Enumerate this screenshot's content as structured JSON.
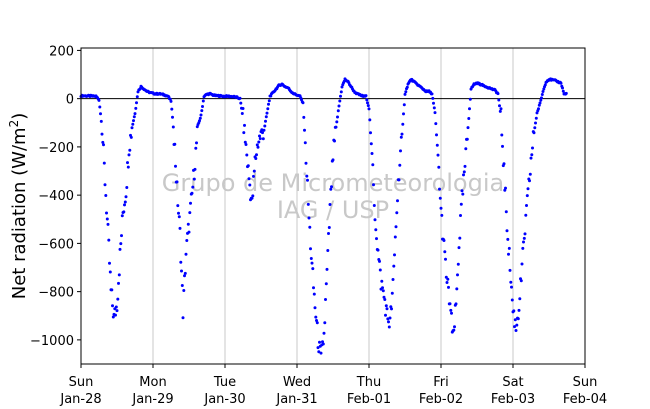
{
  "chart_data": {
    "type": "scatter",
    "title": "",
    "xlabel": "",
    "ylabel": "Net radiation (W/m²)",
    "ylabel_parts": {
      "main": "Net radiation (W/m",
      "sup": "2",
      "end": ")"
    },
    "ylim": [
      -1100,
      210
    ],
    "yticks": [
      -1000,
      -800,
      -600,
      -400,
      -200,
      0,
      200
    ],
    "ytick_labels": [
      "−1000",
      "−800",
      "−600",
      "−400",
      "−200",
      "0",
      "200"
    ],
    "xlim": [
      "2018-01-28",
      "2018-02-04"
    ],
    "x_unit": "day",
    "xticks": [
      {
        "date": "2018-01-28",
        "day": "Sun",
        "date_label": "Jan-28"
      },
      {
        "date": "2018-01-29",
        "day": "Mon",
        "date_label": "Jan-29"
      },
      {
        "date": "2018-01-30",
        "day": "Tue",
        "date_label": "Jan-30"
      },
      {
        "date": "2018-01-31",
        "day": "Wed",
        "date_label": "Jan-31"
      },
      {
        "date": "2018-02-01",
        "day": "Thu",
        "date_label": "Feb-01"
      },
      {
        "date": "2018-02-02",
        "day": "Fri",
        "date_label": "Feb-02"
      },
      {
        "date": "2018-02-03",
        "day": "Sat",
        "date_label": "Feb-03"
      },
      {
        "date": "2018-02-04",
        "day": "Sun",
        "date_label": "Feb-04"
      }
    ],
    "grid": "vertical",
    "zero_line": true,
    "marker_color": "#0000ff",
    "watermark": [
      "Grupo de Micrometeorologia",
      "IAG / USP"
    ],
    "series": [
      {
        "x_start": "2018-01-28 00:00",
        "step_hours": 1,
        "values": [
          12,
          12,
          11,
          11,
          10,
          10,
          -5,
          -120,
          -340,
          -560,
          -800,
          -910,
          -850,
          -650,
          -470,
          -380,
          -200,
          -120,
          -60,
          30,
          50,
          40,
          30,
          25,
          22,
          20,
          20,
          18,
          15,
          10,
          -10,
          -150,
          -380,
          -560,
          -880,
          -640,
          -520,
          -400,
          -260,
          -110,
          -70,
          10,
          18,
          20,
          15,
          12,
          12,
          10,
          10,
          10,
          9,
          8,
          5,
          0,
          -80,
          -200,
          -330,
          -440,
          -260,
          -180,
          -150,
          -130,
          -60,
          10,
          25,
          40,
          55,
          60,
          50,
          45,
          30,
          20,
          15,
          10,
          -20,
          -240,
          -500,
          -700,
          -860,
          -1000,
          -1080,
          -980,
          -720,
          -460,
          -240,
          -120,
          -30,
          50,
          80,
          70,
          50,
          30,
          20,
          15,
          10,
          10,
          -40,
          -240,
          -480,
          -640,
          -760,
          -820,
          -900,
          -930,
          -780,
          -520,
          -300,
          -150,
          20,
          60,
          80,
          70,
          60,
          50,
          40,
          30,
          30,
          20,
          -60,
          -240,
          -470,
          -620,
          -760,
          -850,
          -1000,
          -860,
          -600,
          -420,
          -280,
          -120,
          40,
          60,
          65,
          60,
          55,
          50,
          45,
          40,
          35,
          20,
          -80,
          -300,
          -520,
          -700,
          -880,
          -950,
          -860,
          -700,
          -540,
          -400,
          -260,
          -140,
          -60,
          -20,
          30,
          70,
          80,
          78,
          75,
          70,
          65,
          20
        ]
      }
    ]
  }
}
